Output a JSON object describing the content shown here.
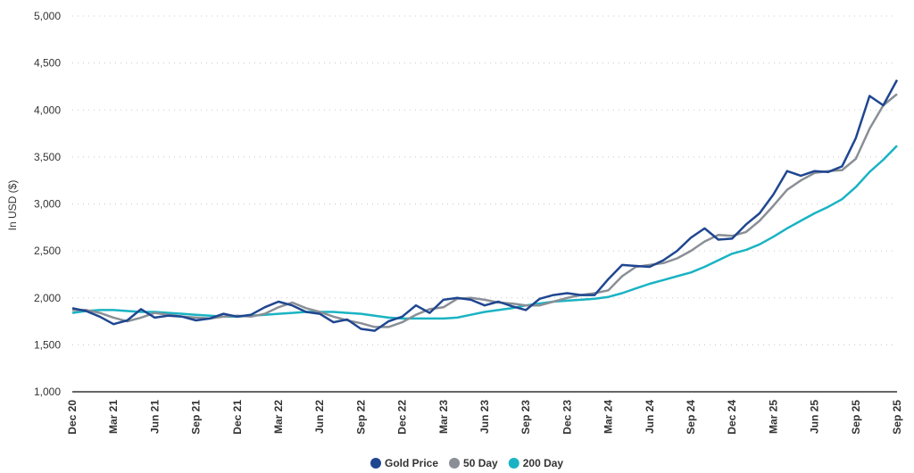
{
  "chart_data": {
    "type": "line",
    "title": "",
    "xlabel": "",
    "ylabel": "In USD ($)",
    "ylim": [
      1000,
      5000
    ],
    "yticks": [
      1000,
      1500,
      2000,
      2500,
      3000,
      3500,
      4000,
      4500,
      5000
    ],
    "ytick_labels": [
      "1,000",
      "1,500",
      "2,000",
      "2,500",
      "3,000",
      "3,500",
      "4,000",
      "4,500",
      "5,000"
    ],
    "xtick_labels": [
      "Dec 20",
      "Mar 21",
      "Jun 21",
      "Sep 21",
      "Dec 21",
      "Mar 22",
      "Jun 22",
      "Sep 22",
      "Dec 22",
      "Mar 23",
      "Jun 23",
      "Sep 23",
      "Dec 23",
      "Mar 24",
      "Jun 24",
      "Sep 24",
      "Dec 24",
      "Mar 25",
      "Jun 25",
      "Sep 25",
      "Sep 25"
    ],
    "grid": "horizontal dotted",
    "legend": "bottom-center",
    "x": [
      "2020-12",
      "2021-01",
      "2021-02",
      "2021-03",
      "2021-04",
      "2021-05",
      "2021-06",
      "2021-07",
      "2021-08",
      "2021-09",
      "2021-10",
      "2021-11",
      "2021-12",
      "2022-01",
      "2022-02",
      "2022-03",
      "2022-04",
      "2022-05",
      "2022-06",
      "2022-07",
      "2022-08",
      "2022-09",
      "2022-10",
      "2022-11",
      "2022-12",
      "2023-01",
      "2023-02",
      "2023-03",
      "2023-04",
      "2023-05",
      "2023-06",
      "2023-07",
      "2023-08",
      "2023-09",
      "2023-10",
      "2023-11",
      "2023-12",
      "2024-01",
      "2024-02",
      "2024-03",
      "2024-04",
      "2024-05",
      "2024-06",
      "2024-07",
      "2024-08",
      "2024-09",
      "2024-10",
      "2024-11",
      "2024-12",
      "2025-01",
      "2025-02",
      "2025-03",
      "2025-04",
      "2025-05",
      "2025-06",
      "2025-07",
      "2025-08",
      "2025-09",
      "2025-10",
      "2025-11",
      "2025-12"
    ],
    "series": [
      {
        "name": "Gold Price",
        "color": "#1f4690",
        "values": [
          1890,
          1860,
          1800,
          1720,
          1760,
          1880,
          1790,
          1810,
          1800,
          1760,
          1780,
          1830,
          1800,
          1820,
          1900,
          1960,
          1920,
          1850,
          1830,
          1740,
          1770,
          1670,
          1650,
          1750,
          1800,
          1920,
          1840,
          1980,
          2000,
          1980,
          1920,
          1960,
          1910,
          1870,
          1990,
          2030,
          2050,
          2030,
          2030,
          2200,
          2350,
          2340,
          2330,
          2400,
          2500,
          2640,
          2740,
          2620,
          2630,
          2780,
          2900,
          3100,
          3350,
          3300,
          3350,
          3340,
          3400,
          3700,
          4150,
          4050,
          4320
        ]
      },
      {
        "name": "50 Day",
        "color": "#8a8f96",
        "values": [
          1870,
          1870,
          1840,
          1790,
          1750,
          1790,
          1840,
          1820,
          1800,
          1790,
          1780,
          1800,
          1810,
          1800,
          1830,
          1900,
          1950,
          1890,
          1850,
          1800,
          1760,
          1730,
          1690,
          1690,
          1740,
          1820,
          1880,
          1900,
          1990,
          2000,
          1980,
          1950,
          1940,
          1920,
          1920,
          1960,
          2000,
          2030,
          2050,
          2080,
          2230,
          2330,
          2350,
          2370,
          2420,
          2500,
          2600,
          2670,
          2660,
          2700,
          2820,
          2980,
          3150,
          3250,
          3330,
          3350,
          3360,
          3480,
          3800,
          4050,
          4170
        ]
      },
      {
        "name": "200 Day",
        "color": "#1ab3c3",
        "values": [
          1840,
          1860,
          1870,
          1870,
          1860,
          1850,
          1850,
          1840,
          1830,
          1820,
          1810,
          1800,
          1800,
          1810,
          1820,
          1830,
          1840,
          1850,
          1850,
          1850,
          1840,
          1830,
          1810,
          1790,
          1780,
          1780,
          1780,
          1780,
          1790,
          1820,
          1850,
          1870,
          1890,
          1920,
          1940,
          1960,
          1970,
          1980,
          1990,
          2010,
          2050,
          2100,
          2150,
          2190,
          2230,
          2270,
          2330,
          2400,
          2470,
          2510,
          2570,
          2650,
          2740,
          2820,
          2900,
          2970,
          3050,
          3180,
          3340,
          3470,
          3620
        ]
      }
    ]
  }
}
